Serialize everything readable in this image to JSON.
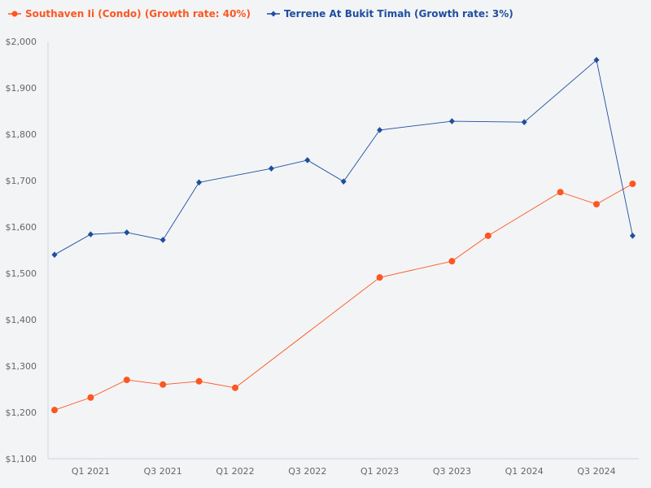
{
  "chart_data": {
    "type": "line",
    "title": "",
    "xlabel": "",
    "ylabel": "",
    "ylim": [
      1100,
      2000
    ],
    "y_ticks": [
      "$1,100",
      "$1,200",
      "$1,300",
      "$1,400",
      "$1,500",
      "$1,600",
      "$1,700",
      "$1,800",
      "$1,900",
      "$2,000"
    ],
    "x": [
      "Q4 2020",
      "Q1 2021",
      "Q2 2021",
      "Q3 2021",
      "Q4 2021",
      "Q1 2022",
      "Q2 2022",
      "Q3 2022",
      "Q4 2022",
      "Q1 2023",
      "Q2 2023",
      "Q3 2023",
      "Q4 2023",
      "Q1 2024",
      "Q2 2024",
      "Q3 2024",
      "Q4 2024"
    ],
    "x_tick_labels": [
      "Q1 2021",
      "Q3 2021",
      "Q1 2022",
      "Q3 2022",
      "Q1 2023",
      "Q3 2023",
      "Q1 2024",
      "Q3 2024"
    ],
    "legend_position": "top-left",
    "grid": false,
    "series": [
      {
        "name": "Southaven Ii (Condo) (Growth rate: 40%)",
        "color": "#ff5722",
        "marker": "circle",
        "values": [
          1205,
          1232,
          1270,
          1260,
          1267,
          1253,
          null,
          null,
          null,
          1491,
          null,
          1526,
          1581,
          null,
          1675,
          1649,
          1693
        ]
      },
      {
        "name": "Terrene At Bukit Timah (Growth rate: 3%)",
        "color": "#1f4e9e",
        "marker": "diamond",
        "values": [
          1540,
          1584,
          1588,
          1572,
          1696,
          null,
          1726,
          1744,
          1698,
          1809,
          null,
          1828,
          null,
          1826,
          null,
          1960,
          1581
        ]
      }
    ]
  }
}
